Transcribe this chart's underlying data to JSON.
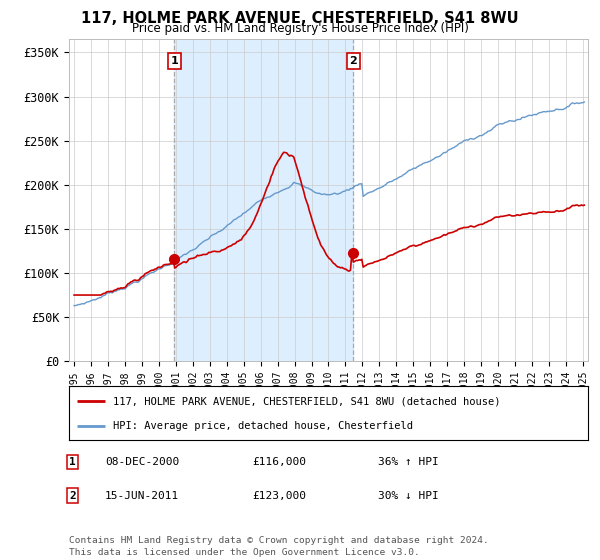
{
  "title": "117, HOLME PARK AVENUE, CHESTERFIELD, S41 8WU",
  "subtitle": "Price paid vs. HM Land Registry's House Price Index (HPI)",
  "ylabel_ticks": [
    "£0",
    "£50K",
    "£100K",
    "£150K",
    "£200K",
    "£250K",
    "£300K",
    "£350K"
  ],
  "ytick_values": [
    0,
    50000,
    100000,
    150000,
    200000,
    250000,
    300000,
    350000
  ],
  "ylim": [
    0,
    365000
  ],
  "xlim_left": 1994.7,
  "xlim_right": 2025.3,
  "legend_line1": "117, HOLME PARK AVENUE, CHESTERFIELD, S41 8WU (detached house)",
  "legend_line2": "HPI: Average price, detached house, Chesterfield",
  "sale1_date_str": "08-DEC-2000",
  "sale1_price_str": "£116,000",
  "sale1_hpi_str": "36% ↑ HPI",
  "sale2_date_str": "15-JUN-2011",
  "sale2_price_str": "£123,000",
  "sale2_hpi_str": "30% ↓ HPI",
  "footer": "Contains HM Land Registry data © Crown copyright and database right 2024.\nThis data is licensed under the Open Government Licence v3.0.",
  "sale1_color": "#cc0000",
  "hpi_color": "#6699cc",
  "vline_color": "#aaaaaa",
  "shade_color": "#ddeeff",
  "background_color": "#ffffff",
  "grid_color": "#cccccc",
  "sale1_x": 2000.917,
  "sale1_y": 116000,
  "sale2_x": 2011.458,
  "sale2_y": 123000
}
